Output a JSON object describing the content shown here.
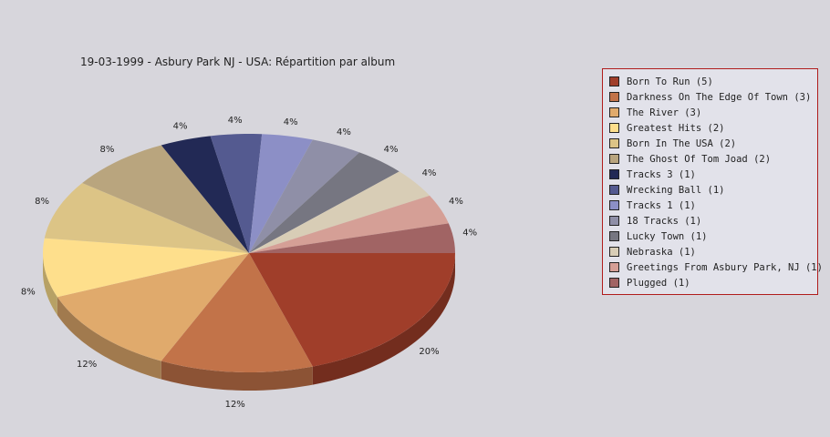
{
  "chart_data": {
    "type": "pie",
    "title": "19-03-1999 - Asbury Park NJ - USA:  Répartition par album",
    "slices": [
      {
        "label": "Born To Run (5)",
        "value": 5,
        "pct_label": "20%",
        "color": "#a03e2a"
      },
      {
        "label": "Darkness On The Edge Of Town (3)",
        "value": 3,
        "pct_label": "12%",
        "color": "#c27349"
      },
      {
        "label": "The River (3)",
        "value": 3,
        "pct_label": "12%",
        "color": "#e0aa6c"
      },
      {
        "label": "Greatest Hits (2)",
        "value": 2,
        "pct_label": "8%",
        "color": "#fedf8c"
      },
      {
        "label": "Born In The USA (2)",
        "value": 2,
        "pct_label": "8%",
        "color": "#dcc486"
      },
      {
        "label": "The Ghost Of Tom Joad (2)",
        "value": 2,
        "pct_label": "8%",
        "color": "#b9a57e"
      },
      {
        "label": "Tracks 3 (1)",
        "value": 1,
        "pct_label": "4%",
        "color": "#222955"
      },
      {
        "label": "Wrecking Ball (1)",
        "value": 1,
        "pct_label": "4%",
        "color": "#545a90"
      },
      {
        "label": "Tracks 1 (1)",
        "value": 1,
        "pct_label": "4%",
        "color": "#8c8fc6"
      },
      {
        "label": "18 Tracks (1)",
        "value": 1,
        "pct_label": "4%",
        "color": "#8f8fa7"
      },
      {
        "label": "Lucky Town (1)",
        "value": 1,
        "pct_label": "4%",
        "color": "#767681"
      },
      {
        "label": "Nebraska (1)",
        "value": 1,
        "pct_label": "4%",
        "color": "#d8cdb6"
      },
      {
        "label": "Greetings From Asbury Park, NJ (1)",
        "value": 1,
        "pct_label": "4%",
        "color": "#d59f96"
      },
      {
        "label": "Plugged (1)",
        "value": 1,
        "pct_label": "4%",
        "color": "#a16464"
      }
    ],
    "legend_position": "right"
  }
}
